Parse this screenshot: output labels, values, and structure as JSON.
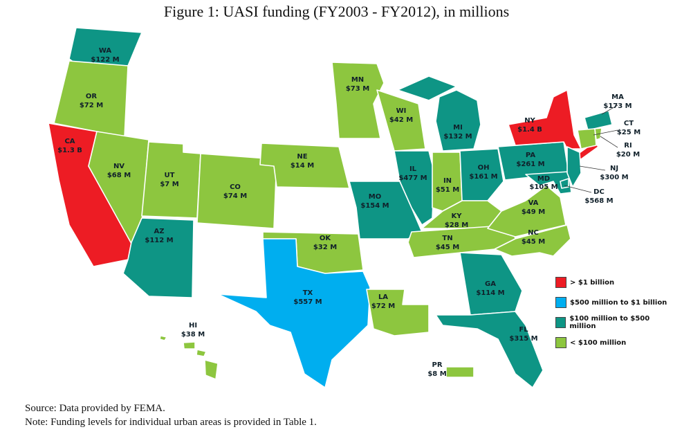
{
  "title": "Figure 1: UASI funding (FY2003 - FY2012), in millions",
  "colors": {
    "over_1b": "#ed1c24",
    "500m_1b": "#00aeef",
    "100m_500m": "#0e9585",
    "under_100m": "#8dc63f",
    "none": "#ffffff"
  },
  "legend": [
    {
      "label": "> $1 billion",
      "color": "#ed1c24"
    },
    {
      "label": "$500 million to $1 billion",
      "color": "#00aeef"
    },
    {
      "label": "$100 million to $500 million",
      "color": "#0e9585"
    },
    {
      "label": "< $100 million",
      "color": "#8dc63f"
    }
  ],
  "states": {
    "WA": {
      "abbr": "WA",
      "amount": "$122 M"
    },
    "OR": {
      "abbr": "OR",
      "amount": "$72 M"
    },
    "CA": {
      "abbr": "CA",
      "amount": "$1.3 B"
    },
    "NV": {
      "abbr": "NV",
      "amount": "$68 M"
    },
    "UT": {
      "abbr": "UT",
      "amount": "$7 M"
    },
    "AZ": {
      "abbr": "AZ",
      "amount": "$112 M"
    },
    "CO": {
      "abbr": "CO",
      "amount": "$74 M"
    },
    "NE": {
      "abbr": "NE",
      "amount": "$14 M"
    },
    "OK": {
      "abbr": "OK",
      "amount": "$32 M"
    },
    "TX": {
      "abbr": "TX",
      "amount": "$557 M"
    },
    "MN": {
      "abbr": "MN",
      "amount": "$73 M"
    },
    "WI": {
      "abbr": "WI",
      "amount": "$42 M"
    },
    "MO": {
      "abbr": "MO",
      "amount": "$154 M"
    },
    "LA": {
      "abbr": "LA",
      "amount": "$72 M"
    },
    "IL": {
      "abbr": "IL",
      "amount": "$477 M"
    },
    "MI": {
      "abbr": "MI",
      "amount": "$132 M"
    },
    "IN": {
      "abbr": "IN",
      "amount": "$51 M"
    },
    "OH": {
      "abbr": "OH",
      "amount": "$161 M"
    },
    "KY": {
      "abbr": "KY",
      "amount": "$28 M"
    },
    "TN": {
      "abbr": "TN",
      "amount": "$45 M"
    },
    "GA": {
      "abbr": "GA",
      "amount": "$114 M"
    },
    "FL": {
      "abbr": "FL",
      "amount": "$315 M"
    },
    "NC": {
      "abbr": "NC",
      "amount": "$45 M"
    },
    "VA": {
      "abbr": "VA",
      "amount": "$49 M"
    },
    "PA": {
      "abbr": "PA",
      "amount": "$261 M"
    },
    "NY": {
      "abbr": "NY",
      "amount": "$1.4 B"
    },
    "MD": {
      "abbr": "MD",
      "amount": "$105 M"
    },
    "MA": {
      "abbr": "MA",
      "amount": "$173 M"
    },
    "CT": {
      "abbr": "CT",
      "amount": "$25 M"
    },
    "RI": {
      "abbr": "RI",
      "amount": "$20 M"
    },
    "NJ": {
      "abbr": "NJ",
      "amount": "$300 M"
    },
    "DC": {
      "abbr": "DC",
      "amount": "$568 M"
    },
    "HI": {
      "abbr": "HI",
      "amount": "$38 M"
    },
    "PR": {
      "abbr": "PR",
      "amount": "$8 M"
    }
  },
  "notes": {
    "source": "Source: Data provided by FEMA.",
    "note": "Note: Funding levels for individual urban areas is provided in Table 1."
  }
}
